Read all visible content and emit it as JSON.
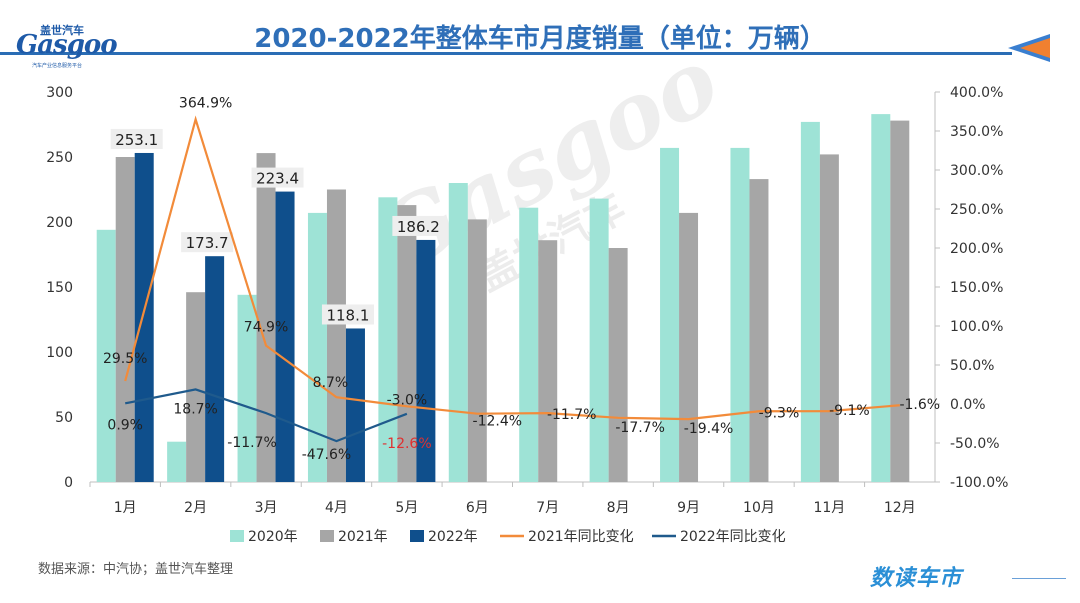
{
  "header": {
    "title": "2020-2022年整体车市月度销量（单位：万辆）",
    "logo_cn": "盖世汽车",
    "logo_en": "Gasgoo",
    "logo_sub": "汽车产业信息服务平台"
  },
  "footer": {
    "source": "数据来源：中汽协；盖世汽车整理",
    "brand": "数读车市"
  },
  "watermark": {
    "en": "Gasgoo",
    "cn": "盖世汽车"
  },
  "colors": {
    "s2020": "#9ee3d6",
    "s2021": "#a6a6a6",
    "s2022": "#0f4f8c",
    "l2021": "#f28b3a",
    "l2022": "#1f5a8c",
    "title": "#2f6fb8",
    "arrow_blue": "#3a7fd0",
    "arrow_orange": "#f08030"
  },
  "chart_data": {
    "type": "bar",
    "categories": [
      "1月",
      "2月",
      "3月",
      "4月",
      "5月",
      "6月",
      "7月",
      "8月",
      "9月",
      "10月",
      "11月",
      "12月"
    ],
    "series": [
      {
        "name": "2020年",
        "kind": "bar",
        "axis": "left",
        "values": [
          194,
          31,
          144,
          207,
          219,
          230,
          211,
          218,
          257,
          257,
          277,
          283
        ]
      },
      {
        "name": "2021年",
        "kind": "bar",
        "axis": "left",
        "values": [
          250,
          146,
          253,
          225,
          213,
          202,
          186,
          180,
          207,
          233,
          252,
          278
        ]
      },
      {
        "name": "2022年",
        "kind": "bar",
        "axis": "left",
        "values": [
          253.1,
          173.7,
          223.4,
          118.1,
          186.2,
          null,
          null,
          null,
          null,
          null,
          null,
          null
        ]
      },
      {
        "name": "2021年同比变化",
        "kind": "line",
        "axis": "right",
        "values": [
          29.5,
          364.9,
          74.9,
          8.7,
          -3.0,
          -12.4,
          -11.7,
          -17.7,
          -19.4,
          -9.3,
          -9.1,
          -1.6
        ]
      },
      {
        "name": "2022年同比变化",
        "kind": "line",
        "axis": "right",
        "values": [
          0.9,
          18.7,
          -11.7,
          -47.6,
          -12.6,
          null,
          null,
          null,
          null,
          null,
          null,
          null
        ]
      }
    ],
    "bar_labels_2022": [
      "253.1",
      "173.7",
      "223.4",
      "118.1",
      "186.2"
    ],
    "line_labels_2021": [
      "29.5%",
      "364.9%",
      "74.9%",
      "8.7%",
      "-3.0%",
      "-12.4%",
      "-11.7%",
      "-17.7%",
      "-19.4%",
      "-9.3%",
      "-9.1%",
      "-1.6%"
    ],
    "line_labels_2022": [
      "0.9%",
      "18.7%",
      "-11.7%",
      "-47.6%",
      "-12.6%"
    ],
    "ylim_left": [
      0,
      300
    ],
    "yticks_left": [
      "0",
      "50",
      "100",
      "150",
      "200",
      "250",
      "300"
    ],
    "ylim_right": [
      -100,
      400
    ],
    "yticks_right": [
      "-100.0%",
      "-50.0%",
      "0.0%",
      "50.0%",
      "100.0%",
      "150.0%",
      "200.0%",
      "250.0%",
      "300.0%",
      "350.0%",
      "400.0%"
    ],
    "legend": [
      "2020年",
      "2021年",
      "2022年",
      "2021年同比变化",
      "2022年同比变化"
    ],
    "legend_position": "bottom",
    "grid": false
  }
}
